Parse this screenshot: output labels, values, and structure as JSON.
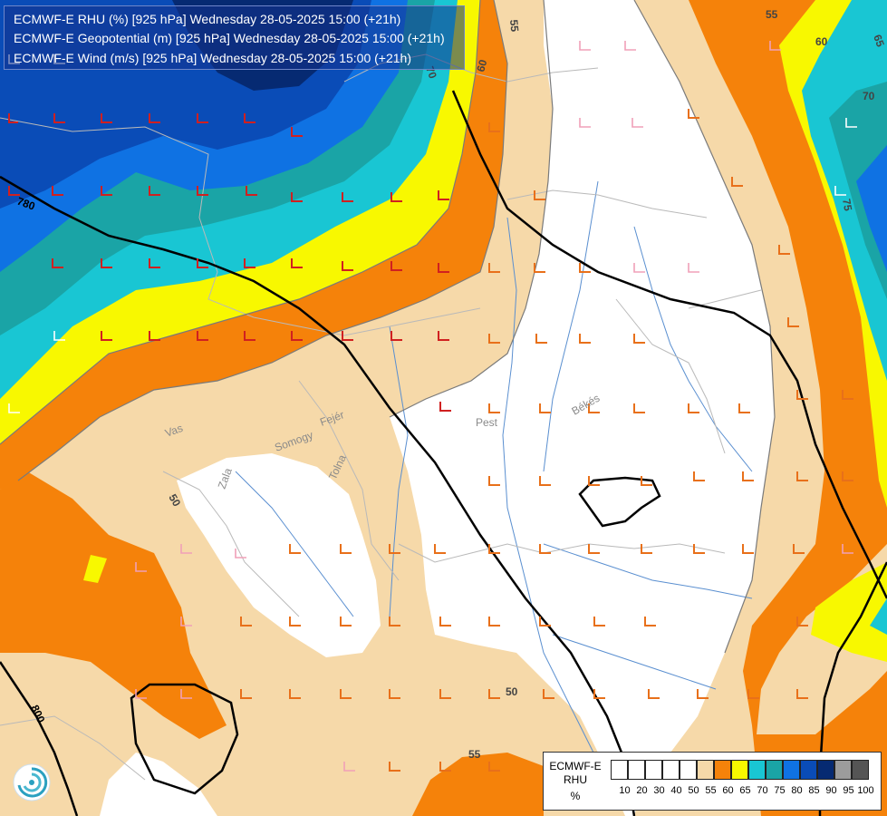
{
  "header": {
    "line1": "ECMWF-E RHU (%) [925 hPa] Wednesday 28-05-2025 15:00 (+21h)",
    "line2": "ECMWF-E Geopotential (m) [925 hPa] Wednesday 28-05-2025 15:00 (+21h)",
    "line3": "ECMWF-E Wind (m/s) [925 hPa] Wednesday 28-05-2025 15:00 (+21h)"
  },
  "map_labels": {
    "c780": "780",
    "c800": "800",
    "r50a": "50",
    "r50b": "50",
    "r55a": "55",
    "r55b": "55",
    "r55c": "55",
    "r60a": "60",
    "r60b": "60",
    "r65": "65",
    "r70a": "70",
    "r70b": "70",
    "r75": "75",
    "pest": "Pest",
    "bekes": "Békés",
    "vas": "Vas",
    "zala": "Zala",
    "somogy": "Somogy",
    "tolna": "Tolna",
    "fejer": "Fejér"
  },
  "legend": {
    "title1": "ECMWF-E",
    "title2": "RHU",
    "unit": "%",
    "colors": [
      "#ffffff",
      "#ffffff",
      "#ffffff",
      "#ffffff",
      "#ffffff",
      "#f6d9a9",
      "#f5820a",
      "#f8f800",
      "#19c6d3",
      "#1aa4a6",
      "#0f72e3",
      "#0a4cb7",
      "#062a72",
      "#9c9c9c",
      "#555555"
    ],
    "ticks": [
      "10",
      "20",
      "30",
      "40",
      "50",
      "55",
      "60",
      "65",
      "70",
      "75",
      "80",
      "85",
      "90",
      "95",
      "100"
    ]
  },
  "colors": {
    "rhu_50_55": "#f6d9a9",
    "rhu_55_60": "#f5820a",
    "rhu_60_65": "#f8f800",
    "rhu_65_70": "#19c6d3",
    "rhu_70_75": "#1aa4a6",
    "rhu_75_80": "#0f72e3",
    "rhu_80_85": "#0a4cb7",
    "rhu_85_90": "#062a72"
  }
}
